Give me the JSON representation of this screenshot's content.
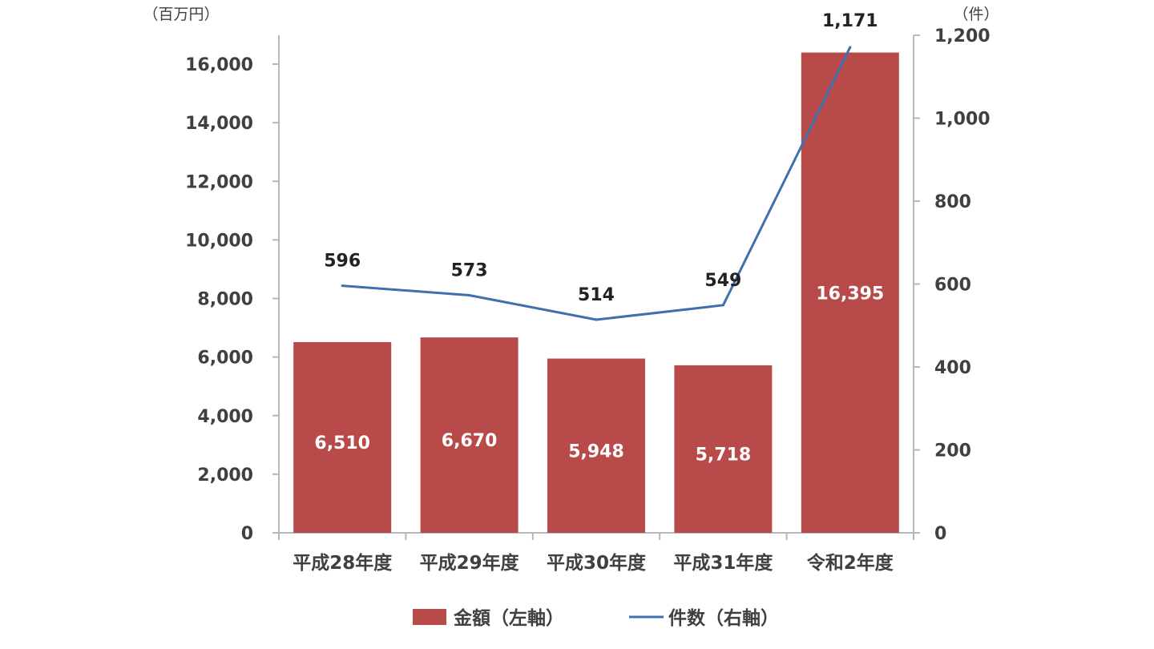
{
  "chart_data": {
    "type": "bar",
    "categories": [
      "平成28年度",
      "平成29年度",
      "平成30年度",
      "平成31年度",
      "令和2年度"
    ],
    "series": [
      {
        "name": "金額（左軸）",
        "type": "bar",
        "axis": "left",
        "values": [
          6510,
          6670,
          5948,
          5718,
          16395
        ],
        "labels": [
          "6,510",
          "6,670",
          "5,948",
          "5,718",
          "16,395"
        ]
      },
      {
        "name": "件数（右軸）",
        "type": "line",
        "axis": "right",
        "values": [
          596,
          573,
          514,
          549,
          1171
        ],
        "labels": [
          "596",
          "573",
          "514",
          "549",
          "1,171"
        ]
      }
    ],
    "y_left": {
      "unit": "（百万円）",
      "ylim": [
        0,
        17000
      ],
      "ticks": [
        0,
        2000,
        4000,
        6000,
        8000,
        10000,
        12000,
        14000,
        16000
      ],
      "tick_labels": [
        "0",
        "2,000",
        "4,000",
        "6,000",
        "8,000",
        "10,000",
        "12,000",
        "14,000",
        "16,000"
      ]
    },
    "y_right": {
      "unit": "（件）",
      "ylim": [
        0,
        1200
      ],
      "ticks": [
        0,
        200,
        400,
        600,
        800,
        1000,
        1200
      ],
      "tick_labels": [
        "0",
        "200",
        "400",
        "600",
        "800",
        "1,000",
        "1,200"
      ]
    },
    "grid": false,
    "legend_position": "bottom",
    "colors": {
      "bar": "#b84a4a",
      "line": "#3f6fad",
      "axis": "#b8b8b8",
      "text": "#404040"
    }
  }
}
